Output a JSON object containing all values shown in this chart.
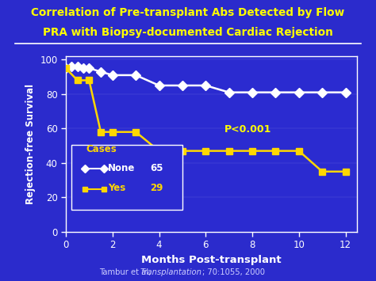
{
  "title_line1": "Correlation of Pre-transplant Abs Detected by Flow",
  "title_line2": "PRA with Biopsy-documented Cardiac Rejection",
  "xlabel": "Months Post-transplant",
  "ylabel": "Rejection-free Survival",
  "bg_color": "#2B2BCC",
  "plot_bg_color": "#2B2BD0",
  "title_color": "#FFFF00",
  "axis_label_color": "#FFFFFF",
  "tick_label_color": "#FFFFFF",
  "footer_normal": "Tambur et al, ",
  "footer_italic": "Transplantation",
  "footer_end": "; 70:1055, 2000",
  "footer_color": "#CCCCFF",
  "pvalue_text": "P<0.001",
  "legend_title": "Cases",
  "none_label": "None",
  "none_n": "65",
  "yes_label": "Yes",
  "yes_n": "29",
  "none_color": "#FFFFFF",
  "yes_color": "#FFD700",
  "none_x": [
    0,
    0.25,
    0.5,
    0.75,
    1.0,
    1.5,
    2.0,
    3.0,
    4.0,
    5.0,
    6.0,
    7.0,
    8.0,
    9.0,
    10.0,
    11.0,
    12.0
  ],
  "none_y": [
    95,
    96,
    96,
    95,
    95,
    93,
    91,
    91,
    85,
    85,
    85,
    81,
    81,
    81,
    81,
    81,
    81
  ],
  "yes_x": [
    0,
    0.5,
    1.0,
    1.5,
    2.0,
    3.0,
    4.0,
    5.0,
    6.0,
    7.0,
    8.0,
    9.0,
    10.0,
    11.0,
    12.0
  ],
  "yes_y": [
    95,
    88,
    88,
    58,
    58,
    58,
    47,
    47,
    47,
    47,
    47,
    47,
    47,
    35,
    35
  ],
  "xlim": [
    0,
    12.5
  ],
  "ylim": [
    0,
    102
  ],
  "xticks": [
    0,
    2,
    4,
    6,
    8,
    10,
    12
  ],
  "yticks": [
    0,
    20,
    40,
    60,
    80,
    100
  ],
  "line_linewidth": 1.8,
  "marker_size": 6
}
